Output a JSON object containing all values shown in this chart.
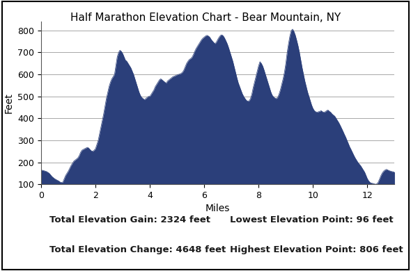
{
  "title": "Half Marathon Elevation Chart - Bear Mountain, NY",
  "xlabel": "Miles",
  "ylabel": "Feet",
  "fill_color": "#2B3F7A",
  "line_color": "#2B3F7A",
  "background_color": "#ffffff",
  "ylim": [
    100,
    840
  ],
  "xlim": [
    0,
    13
  ],
  "yticks": [
    100,
    200,
    300,
    400,
    500,
    600,
    700,
    800
  ],
  "xticks": [
    0,
    2,
    4,
    6,
    8,
    10,
    12
  ],
  "stats_left_top": "Total Elevation Gain: 2324 feet",
  "stats_left_bot": "Total Elevation Change: 4648 feet",
  "stats_right_top": "Lowest Elevation Point: 96 feet",
  "stats_right_bot": "Highest Elevation Point: 806 feet",
  "elevation_data": [
    [
      0.0,
      165
    ],
    [
      0.1,
      162
    ],
    [
      0.2,
      158
    ],
    [
      0.3,
      150
    ],
    [
      0.4,
      135
    ],
    [
      0.5,
      125
    ],
    [
      0.6,
      118
    ],
    [
      0.65,
      115
    ],
    [
      0.7,
      110
    ],
    [
      0.75,
      108
    ],
    [
      0.8,
      110
    ],
    [
      0.85,
      125
    ],
    [
      0.9,
      140
    ],
    [
      1.0,
      160
    ],
    [
      1.1,
      185
    ],
    [
      1.2,
      205
    ],
    [
      1.3,
      215
    ],
    [
      1.35,
      220
    ],
    [
      1.4,
      230
    ],
    [
      1.45,
      245
    ],
    [
      1.5,
      255
    ],
    [
      1.6,
      262
    ],
    [
      1.7,
      268
    ],
    [
      1.75,
      265
    ],
    [
      1.8,
      258
    ],
    [
      1.85,
      252
    ],
    [
      1.9,
      250
    ],
    [
      1.95,
      255
    ],
    [
      2.0,
      262
    ],
    [
      2.1,
      300
    ],
    [
      2.2,
      360
    ],
    [
      2.3,
      420
    ],
    [
      2.4,
      490
    ],
    [
      2.5,
      545
    ],
    [
      2.55,
      565
    ],
    [
      2.6,
      580
    ],
    [
      2.65,
      590
    ],
    [
      2.7,
      600
    ],
    [
      2.75,
      640
    ],
    [
      2.8,
      680
    ],
    [
      2.85,
      700
    ],
    [
      2.9,
      710
    ],
    [
      2.95,
      705
    ],
    [
      3.0,
      695
    ],
    [
      3.05,
      680
    ],
    [
      3.1,
      665
    ],
    [
      3.15,
      660
    ],
    [
      3.2,
      650
    ],
    [
      3.25,
      640
    ],
    [
      3.3,
      630
    ],
    [
      3.35,
      615
    ],
    [
      3.4,
      600
    ],
    [
      3.45,
      580
    ],
    [
      3.5,
      560
    ],
    [
      3.55,
      540
    ],
    [
      3.6,
      520
    ],
    [
      3.65,
      505
    ],
    [
      3.7,
      495
    ],
    [
      3.75,
      490
    ],
    [
      3.8,
      485
    ],
    [
      3.85,
      490
    ],
    [
      3.9,
      495
    ],
    [
      3.95,
      500
    ],
    [
      4.0,
      500
    ],
    [
      4.05,
      510
    ],
    [
      4.1,
      520
    ],
    [
      4.15,
      530
    ],
    [
      4.2,
      545
    ],
    [
      4.25,
      555
    ],
    [
      4.3,
      565
    ],
    [
      4.35,
      575
    ],
    [
      4.4,
      580
    ],
    [
      4.45,
      575
    ],
    [
      4.5,
      570
    ],
    [
      4.55,
      565
    ],
    [
      4.6,
      560
    ],
    [
      4.65,
      570
    ],
    [
      4.7,
      575
    ],
    [
      4.75,
      580
    ],
    [
      4.8,
      585
    ],
    [
      4.85,
      590
    ],
    [
      4.9,
      592
    ],
    [
      4.95,
      595
    ],
    [
      5.0,
      598
    ],
    [
      5.05,
      600
    ],
    [
      5.1,
      602
    ],
    [
      5.15,
      605
    ],
    [
      5.2,
      610
    ],
    [
      5.25,
      620
    ],
    [
      5.3,
      635
    ],
    [
      5.35,
      650
    ],
    [
      5.4,
      660
    ],
    [
      5.45,
      668
    ],
    [
      5.5,
      672
    ],
    [
      5.55,
      678
    ],
    [
      5.6,
      690
    ],
    [
      5.65,
      705
    ],
    [
      5.7,
      718
    ],
    [
      5.75,
      728
    ],
    [
      5.8,
      738
    ],
    [
      5.85,
      748
    ],
    [
      5.9,
      758
    ],
    [
      5.95,
      765
    ],
    [
      6.0,
      770
    ],
    [
      6.05,
      775
    ],
    [
      6.1,
      778
    ],
    [
      6.15,
      775
    ],
    [
      6.2,
      770
    ],
    [
      6.25,
      760
    ],
    [
      6.3,
      752
    ],
    [
      6.35,
      745
    ],
    [
      6.4,
      740
    ],
    [
      6.45,
      748
    ],
    [
      6.5,
      760
    ],
    [
      6.55,
      770
    ],
    [
      6.6,
      778
    ],
    [
      6.65,
      780
    ],
    [
      6.7,
      775
    ],
    [
      6.75,
      765
    ],
    [
      6.8,
      752
    ],
    [
      6.85,
      738
    ],
    [
      6.9,
      720
    ],
    [
      6.95,
      700
    ],
    [
      7.0,
      680
    ],
    [
      7.05,
      660
    ],
    [
      7.1,
      635
    ],
    [
      7.15,
      610
    ],
    [
      7.2,
      585
    ],
    [
      7.25,
      562
    ],
    [
      7.3,
      545
    ],
    [
      7.35,
      528
    ],
    [
      7.4,
      512
    ],
    [
      7.45,
      500
    ],
    [
      7.5,
      490
    ],
    [
      7.55,
      482
    ],
    [
      7.6,
      478
    ],
    [
      7.65,
      480
    ],
    [
      7.7,
      490
    ],
    [
      7.75,
      510
    ],
    [
      7.8,
      540
    ],
    [
      7.85,
      565
    ],
    [
      7.9,
      590
    ],
    [
      7.95,
      615
    ],
    [
      8.0,
      640
    ],
    [
      8.05,
      658
    ],
    [
      8.1,
      650
    ],
    [
      8.15,
      638
    ],
    [
      8.2,
      620
    ],
    [
      8.25,
      600
    ],
    [
      8.3,
      580
    ],
    [
      8.35,
      560
    ],
    [
      8.4,
      540
    ],
    [
      8.45,
      520
    ],
    [
      8.5,
      505
    ],
    [
      8.55,
      498
    ],
    [
      8.6,
      492
    ],
    [
      8.65,
      490
    ],
    [
      8.7,
      495
    ],
    [
      8.75,
      510
    ],
    [
      8.8,
      530
    ],
    [
      8.85,
      555
    ],
    [
      8.9,
      580
    ],
    [
      8.95,
      610
    ],
    [
      9.0,
      650
    ],
    [
      9.05,
      700
    ],
    [
      9.1,
      740
    ],
    [
      9.15,
      775
    ],
    [
      9.2,
      800
    ],
    [
      9.25,
      806
    ],
    [
      9.3,
      795
    ],
    [
      9.35,
      778
    ],
    [
      9.4,
      755
    ],
    [
      9.45,
      730
    ],
    [
      9.5,
      700
    ],
    [
      9.55,
      665
    ],
    [
      9.6,
      630
    ],
    [
      9.65,
      600
    ],
    [
      9.7,
      570
    ],
    [
      9.75,
      545
    ],
    [
      9.8,
      520
    ],
    [
      9.85,
      500
    ],
    [
      9.9,
      480
    ],
    [
      9.95,
      460
    ],
    [
      10.0,
      445
    ],
    [
      10.05,
      435
    ],
    [
      10.1,
      430
    ],
    [
      10.15,
      428
    ],
    [
      10.2,
      430
    ],
    [
      10.25,
      432
    ],
    [
      10.3,
      435
    ],
    [
      10.35,
      430
    ],
    [
      10.4,
      428
    ],
    [
      10.45,
      430
    ],
    [
      10.5,
      435
    ],
    [
      10.55,
      438
    ],
    [
      10.6,
      432
    ],
    [
      10.65,
      428
    ],
    [
      10.7,
      420
    ],
    [
      10.75,
      415
    ],
    [
      10.8,
      410
    ],
    [
      10.85,
      400
    ],
    [
      10.9,
      390
    ],
    [
      10.95,
      380
    ],
    [
      11.0,
      368
    ],
    [
      11.05,
      355
    ],
    [
      11.1,
      342
    ],
    [
      11.15,
      328
    ],
    [
      11.2,
      315
    ],
    [
      11.25,
      300
    ],
    [
      11.3,
      285
    ],
    [
      11.35,
      270
    ],
    [
      11.4,
      258
    ],
    [
      11.45,
      245
    ],
    [
      11.5,
      232
    ],
    [
      11.55,
      220
    ],
    [
      11.6,
      210
    ],
    [
      11.65,
      200
    ],
    [
      11.7,
      192
    ],
    [
      11.75,
      185
    ],
    [
      11.8,
      175
    ],
    [
      11.85,
      165
    ],
    [
      11.9,
      155
    ],
    [
      11.95,
      140
    ],
    [
      12.0,
      125
    ],
    [
      12.05,
      115
    ],
    [
      12.1,
      108
    ],
    [
      12.15,
      105
    ],
    [
      12.2,
      104
    ],
    [
      12.25,
      102
    ],
    [
      12.3,
      100
    ],
    [
      12.35,
      102
    ],
    [
      12.4,
      110
    ],
    [
      12.45,
      125
    ],
    [
      12.5,
      140
    ],
    [
      12.55,
      152
    ],
    [
      12.6,
      160
    ],
    [
      12.65,
      165
    ],
    [
      12.7,
      168
    ],
    [
      12.75,
      165
    ],
    [
      12.8,
      162
    ],
    [
      12.85,
      160
    ],
    [
      12.9,
      158
    ],
    [
      12.95,
      157
    ],
    [
      13.0,
      156
    ]
  ]
}
